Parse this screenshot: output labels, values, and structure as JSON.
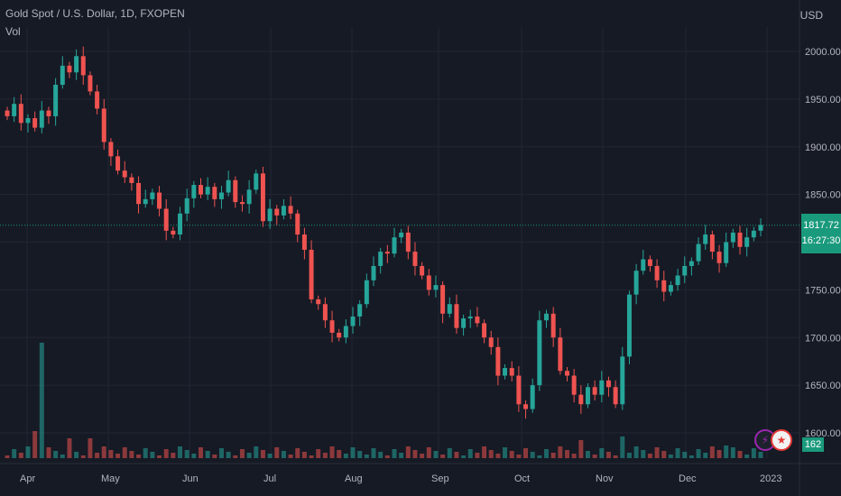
{
  "legend": {
    "title": "Gold Spot / U.S. Dollar, 1D, FXOPEN",
    "indicator": "Vol"
  },
  "currency": "USD",
  "last_price": "1817.72",
  "countdown": "16:27:30",
  "volume_value": "162",
  "event_icons": [
    "lightning-icon",
    "us-flag-icon"
  ],
  "colors": {
    "background": "#161a25",
    "up": "#26a69a",
    "down": "#ef5350",
    "tag": "#1a9a7c",
    "grid": "#232632"
  },
  "chart_data": {
    "type": "candlestick",
    "title": "Gold Spot / U.S. Dollar, 1D, FXOPEN",
    "y_ticks": [
      "2000.00",
      "1950.00",
      "1900.00",
      "1850.00",
      "1800.00",
      "1750.00",
      "1700.00",
      "1650.00",
      "1600.00"
    ],
    "ylim": [
      1590,
      2010
    ],
    "x_ticks": [
      "Apr",
      "May",
      "Jun",
      "Jul",
      "Aug",
      "Sep",
      "Oct",
      "Nov",
      "Dec",
      "2023"
    ],
    "closes": [
      1932,
      1945,
      1925,
      1930,
      1920,
      1938,
      1932,
      1965,
      1985,
      1978,
      1995,
      1975,
      1958,
      1940,
      1905,
      1890,
      1875,
      1868,
      1862,
      1840,
      1845,
      1852,
      1835,
      1812,
      1808,
      1830,
      1846,
      1860,
      1850,
      1858,
      1845,
      1852,
      1865,
      1842,
      1840,
      1855,
      1872,
      1822,
      1835,
      1828,
      1838,
      1830,
      1808,
      1792,
      1740,
      1735,
      1718,
      1705,
      1700,
      1712,
      1722,
      1735,
      1760,
      1775,
      1790,
      1788,
      1805,
      1810,
      1790,
      1775,
      1765,
      1750,
      1755,
      1725,
      1735,
      1710,
      1720,
      1722,
      1715,
      1700,
      1690,
      1660,
      1668,
      1660,
      1630,
      1625,
      1650,
      1718,
      1725,
      1700,
      1665,
      1660,
      1640,
      1630,
      1648,
      1640,
      1655,
      1648,
      1630,
      1680,
      1745,
      1770,
      1782,
      1775,
      1760,
      1748,
      1755,
      1765,
      1775,
      1780,
      1798,
      1808,
      1790,
      1778,
      1800,
      1810,
      1795,
      1805,
      1812,
      1818
    ]
  }
}
